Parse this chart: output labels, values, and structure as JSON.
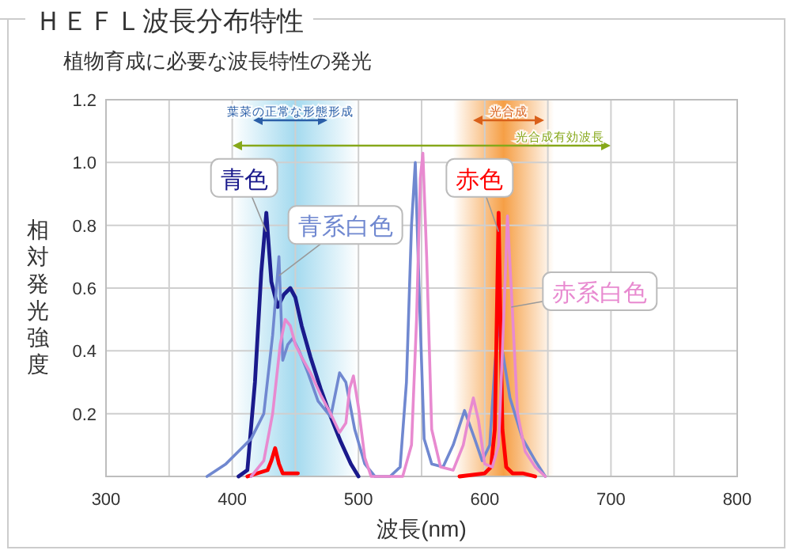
{
  "chart_data": {
    "type": "line",
    "title": "ＨＥＦＬ波長分布特性",
    "subtitle": "植物育成に必要な波長特性の発光",
    "xlabel": "波長(nm)",
    "ylabel": "相対発光強度",
    "xlim": [
      300,
      800
    ],
    "xticks": [
      300,
      {
        "value": 350,
        "label": null
      },
      400,
      {
        "value": 450,
        "label": null
      },
      500,
      {
        "value": 550,
        "label": null
      },
      600,
      {
        "value": 650,
        "label": null
      },
      700,
      {
        "value": 750,
        "label": null
      },
      800
    ],
    "ylim": [
      0,
      1.2
    ],
    "yticks": [
      {
        "value": 0,
        "label": null
      },
      0.2,
      0.4,
      0.6,
      {
        "value": 0.8,
        "label": "0.8"
      },
      {
        "value": 1,
        "label": "1.0"
      },
      1.2
    ],
    "grid": true,
    "legend": false,
    "marker": "none",
    "line_style": "solid",
    "bands": [
      {
        "axis": "x",
        "from": 400,
        "to": 500,
        "color": "#9fd8ee"
      },
      {
        "axis": "x",
        "from": 575,
        "to": 655,
        "color": "#f59a3c"
      }
    ],
    "annotations": [
      "葉菜の正常な形態形成",
      "光合成",
      "光合成有効波長"
    ],
    "series": [
      {
        "name": "青色",
        "color": "#1a1a8c",
        "x": [
          405,
          412,
          418,
          423,
          427,
          431,
          436,
          441,
          446,
          450,
          455,
          462,
          470,
          478,
          486,
          494,
          500
        ],
        "values": [
          0,
          0.02,
          0.3,
          0.65,
          0.84,
          0.62,
          0.54,
          0.58,
          0.6,
          0.57,
          0.48,
          0.38,
          0.28,
          0.19,
          0.11,
          0.04,
          0
        ]
      },
      {
        "name": "青系白色",
        "color": "#7088d0",
        "x": [
          380,
          395,
          405,
          415,
          425,
          432,
          437,
          440,
          444,
          448,
          453,
          460,
          468,
          478,
          485,
          490,
          497,
          505,
          513,
          525,
          533,
          538,
          542,
          545,
          548,
          552,
          558,
          567,
          575,
          584,
          592,
          598,
          604,
          608,
          611,
          614,
          620,
          630,
          640,
          648
        ],
        "values": [
          0,
          0.04,
          0.08,
          0.12,
          0.2,
          0.45,
          0.7,
          0.37,
          0.42,
          0.44,
          0.4,
          0.33,
          0.24,
          0.19,
          0.33,
          0.3,
          0.15,
          0.04,
          0,
          0,
          0.03,
          0.3,
          0.8,
          1.0,
          0.6,
          0.12,
          0.04,
          0.03,
          0.1,
          0.21,
          0.12,
          0.05,
          0.1,
          0.35,
          0.49,
          0.4,
          0.25,
          0.12,
          0.05,
          0
        ]
      },
      {
        "color": "#ff0000",
        "x": [
          412,
          420,
          428,
          431,
          434,
          437,
          440,
          452
        ],
        "values": [
          0,
          0.01,
          0.02,
          0.05,
          0.09,
          0.04,
          0.01,
          0.01
        ]
      },
      {
        "name": "赤色",
        "color": "#ff0000",
        "x": [
          580,
          600,
          605,
          608,
          610,
          611,
          612,
          614,
          617,
          622,
          630,
          640
        ],
        "values": [
          0,
          0.01,
          0.03,
          0.15,
          0.6,
          0.84,
          0.6,
          0.15,
          0.03,
          0.01,
          0.01,
          0
        ]
      },
      {
        "name": "赤系白色",
        "color": "#e88ad0",
        "x": [
          415,
          425,
          432,
          438,
          442,
          446,
          450,
          455,
          462,
          470,
          478,
          485,
          490,
          493,
          496,
          500,
          505,
          510,
          535,
          542,
          546,
          549,
          551,
          554,
          558,
          565,
          575,
          583,
          588,
          591,
          595,
          600,
          606,
          611,
          615,
          618,
          621,
          626,
          632,
          640,
          648
        ],
        "values": [
          0,
          0.05,
          0.2,
          0.42,
          0.5,
          0.48,
          0.42,
          0.38,
          0.33,
          0.26,
          0.2,
          0.14,
          0.17,
          0.28,
          0.32,
          0.22,
          0.06,
          0,
          0,
          0.1,
          0.5,
          0.95,
          1.03,
          0.7,
          0.15,
          0.03,
          0.02,
          0.1,
          0.2,
          0.25,
          0.18,
          0.04,
          0.03,
          0.1,
          0.5,
          0.83,
          0.6,
          0.2,
          0.08,
          0.03,
          0
        ]
      }
    ]
  }
}
